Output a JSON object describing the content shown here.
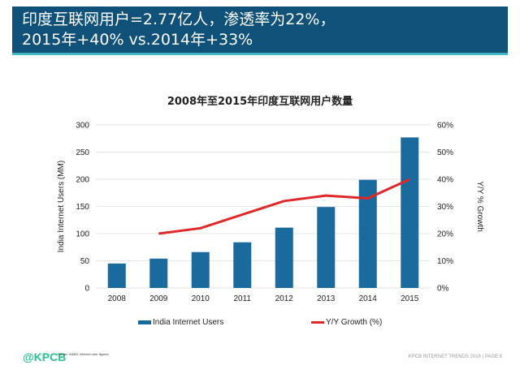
{
  "header": {
    "line1": "印度互联网用户=2.77亿人，渗透率为22%，",
    "line2": "2015年+40% vs.2014年+33%"
  },
  "chart_data": {
    "type": "bar+line",
    "title": "2008年至2015年印度互联网用户数量",
    "categories": [
      "2008",
      "2009",
      "2010",
      "2011",
      "2012",
      "2013",
      "2014",
      "2015"
    ],
    "ylabel": "India Internet Users (MM)",
    "y2label": "Y/Y % Growth",
    "ylim": [
      0,
      300
    ],
    "y2lim": [
      0,
      60
    ],
    "yticks": [
      "0",
      "50",
      "100",
      "150",
      "200",
      "250",
      "300"
    ],
    "y2ticks": [
      "0%",
      "10%",
      "20%",
      "30%",
      "40%",
      "50%",
      "60%"
    ],
    "grid": true,
    "legend_placement": "bottom",
    "series": [
      {
        "name": "India Internet Users",
        "type": "bar",
        "axis": "left",
        "color": "#1a6a9e",
        "values": [
          45,
          54,
          66,
          84,
          111,
          149,
          199,
          277
        ]
      },
      {
        "name": "Y/Y Growth (%)",
        "type": "line",
        "axis": "right",
        "color": "#e02828",
        "values": [
          null,
          20,
          22,
          27,
          32,
          34,
          33,
          40
        ]
      }
    ]
  },
  "footer": {
    "logo": "@KPCB",
    "source": "Source: IAMAI, Internet user figures",
    "page": "KPCB INTERNET TRENDS 2016  |  PAGE 8"
  }
}
